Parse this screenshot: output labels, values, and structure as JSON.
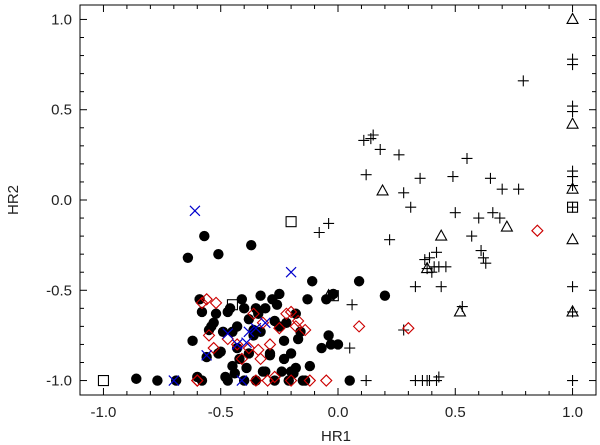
{
  "chart_data": {
    "type": "scatter",
    "title": "",
    "xlabel": "HR1",
    "ylabel": "HR2",
    "xlim": [
      -1.1,
      1.1
    ],
    "ylim": [
      -1.08,
      1.08
    ],
    "grid": false,
    "xticks": [
      "-1.0",
      "-0.5",
      "0.0",
      "0.5",
      "1.0"
    ],
    "yticks": [
      "-1.0",
      "-0.5",
      "0.0",
      "0.5",
      "1.0"
    ],
    "colors": {
      "filled_circle": "#000000",
      "plus": "#000000",
      "triangle": "#000000",
      "square": "#000000",
      "diamond": "#cc0000",
      "x_cross": "#0000cc"
    },
    "series": [
      {
        "marker": "filled_circle",
        "x": [
          -0.86,
          -0.77,
          -0.69,
          -0.64,
          -0.62,
          -0.59,
          -0.57,
          -0.58,
          -0.54,
          -0.52,
          -0.51,
          -0.49,
          -0.47,
          -0.45,
          -0.43,
          -0.41,
          -0.4,
          -0.38,
          -0.36,
          -0.35,
          -0.33,
          -0.31,
          -0.29,
          -0.27,
          -0.25,
          -0.23,
          -0.21,
          -0.2,
          -0.18,
          -0.15,
          -0.05,
          -0.04,
          -0.03,
          0.0,
          0.09,
          0.2,
          -0.58,
          -0.51,
          -0.45,
          -0.4,
          -0.37,
          -0.33,
          -0.28,
          -0.23,
          -0.18,
          -0.14,
          -0.11,
          -0.55,
          -0.5,
          -0.47,
          -0.44,
          -0.42,
          -0.35,
          -0.31,
          -0.27,
          -0.2,
          -0.17,
          -0.13,
          -0.56,
          -0.53,
          -0.46,
          -0.38,
          -0.32,
          -0.26,
          -0.24,
          -0.22,
          -0.16,
          -0.12,
          -0.07,
          -0.02,
          0.05,
          -0.48,
          -0.36,
          -0.29,
          -0.25,
          -0.19,
          -0.6,
          -0.43,
          -0.39,
          -0.34
        ],
        "y": [
          -0.99,
          -1.0,
          -1.0,
          -0.32,
          -0.78,
          -0.55,
          -0.2,
          -1.0,
          -0.7,
          -0.63,
          -0.85,
          -0.73,
          -1.0,
          -0.73,
          -0.7,
          -0.55,
          -1.0,
          -0.85,
          -0.75,
          -1.0,
          -0.73,
          -0.6,
          -0.85,
          -1.0,
          -0.7,
          -0.78,
          -1.0,
          -0.85,
          -0.63,
          -1.0,
          -0.55,
          -0.75,
          -0.8,
          -0.8,
          -0.45,
          -0.53,
          -0.62,
          -0.3,
          -0.92,
          -0.6,
          -0.25,
          -0.53,
          -0.55,
          -0.88,
          -0.93,
          -1.0,
          -0.45,
          -0.72,
          -0.84,
          -0.62,
          -0.96,
          -0.88,
          -0.6,
          -0.95,
          -0.67,
          -0.95,
          -0.77,
          -0.55,
          -0.87,
          -0.68,
          -0.6,
          -0.66,
          -0.95,
          -0.58,
          -0.95,
          -0.68,
          -0.73,
          -0.92,
          -0.82,
          -0.52,
          -1.0,
          -0.98,
          -0.72,
          -0.86,
          -0.52,
          -0.96,
          -0.98,
          -0.82,
          -0.93,
          -0.63
        ]
      },
      {
        "marker": "plus",
        "x": [
          -0.08,
          -0.04,
          0.05,
          0.06,
          0.11,
          0.12,
          0.14,
          0.15,
          0.18,
          0.22,
          0.26,
          0.28,
          0.31,
          0.33,
          0.35,
          0.37,
          0.38,
          0.39,
          0.4,
          0.41,
          0.42,
          0.43,
          0.44,
          0.46,
          0.49,
          0.5,
          0.53,
          0.55,
          0.57,
          0.6,
          0.61,
          0.62,
          0.63,
          0.65,
          0.66,
          0.69,
          0.7,
          0.77,
          0.79,
          0.12,
          0.28,
          0.33,
          0.36,
          0.38,
          0.39,
          0.42,
          0.43,
          1.0,
          1.0,
          1.0,
          1.0,
          1.0,
          1.0,
          1.0,
          1.0,
          1.0,
          1.0,
          1.0
        ],
        "y": [
          -0.18,
          -0.13,
          -0.82,
          -0.58,
          0.33,
          0.14,
          0.34,
          0.36,
          0.28,
          -0.22,
          0.25,
          0.04,
          -0.04,
          -0.48,
          0.12,
          -0.33,
          -0.38,
          -0.32,
          -0.4,
          -0.37,
          -0.29,
          -0.37,
          -0.48,
          -0.37,
          0.13,
          -0.07,
          -0.59,
          0.23,
          -0.2,
          -0.1,
          -0.28,
          -0.32,
          -0.35,
          0.12,
          -0.07,
          -0.1,
          0.06,
          0.06,
          0.66,
          -1.0,
          -0.72,
          -1.0,
          -1.0,
          -1.0,
          -1.0,
          -1.0,
          -0.98,
          -1.0,
          -0.62,
          -0.48,
          0.16,
          0.13,
          0.08,
          0.52,
          0.49,
          0.75,
          0.78,
          -0.04
        ]
      },
      {
        "marker": "triangle",
        "x": [
          -0.04,
          0.19,
          0.44,
          0.38,
          0.52,
          0.72,
          1.0,
          1.0,
          1.0,
          1.0,
          1.0
        ],
        "y": [
          -0.53,
          0.05,
          -0.2,
          -0.38,
          -0.62,
          -0.15,
          1.0,
          0.42,
          0.06,
          -0.22,
          -0.62
        ]
      },
      {
        "marker": "square",
        "x": [
          -1.0,
          -0.45,
          -0.2,
          -0.02,
          1.0
        ],
        "y": [
          -1.0,
          -0.58,
          -0.12,
          -0.53,
          -0.04
        ]
      },
      {
        "marker": "diamond",
        "x": [
          -0.6,
          -0.56,
          -0.52,
          -0.47,
          -0.41,
          -0.38,
          -0.36,
          -0.33,
          -0.3,
          -0.29,
          -0.25,
          -0.22,
          -0.2,
          -0.17,
          -0.14,
          -0.12,
          -0.27,
          -0.32,
          -0.43,
          -0.55,
          -0.53,
          -0.58,
          -0.34,
          -0.2,
          -0.05,
          0.09,
          0.3,
          0.85,
          -0.35,
          -0.18,
          -0.6
        ],
        "y": [
          -1.0,
          -0.55,
          -0.57,
          -0.77,
          -0.88,
          -0.82,
          -0.63,
          -0.88,
          -1.0,
          -0.8,
          -0.71,
          -0.63,
          -0.62,
          -0.67,
          -0.72,
          -1.0,
          -0.98,
          -0.68,
          -0.8,
          -0.75,
          -0.82,
          -0.57,
          -0.83,
          -1.0,
          -1.0,
          -0.7,
          -0.71,
          -0.17,
          -1.0,
          -0.7,
          -1.0
        ]
      },
      {
        "marker": "x_cross",
        "x": [
          -0.7,
          -0.61,
          -0.56,
          -0.47,
          -0.43,
          -0.39,
          -0.38,
          -0.35,
          -0.31,
          -0.2,
          -0.41
        ],
        "y": [
          -1.0,
          -0.06,
          -0.86,
          -0.74,
          -0.8,
          -0.79,
          -0.73,
          -0.71,
          -0.68,
          -0.4,
          -1.0
        ]
      }
    ]
  }
}
